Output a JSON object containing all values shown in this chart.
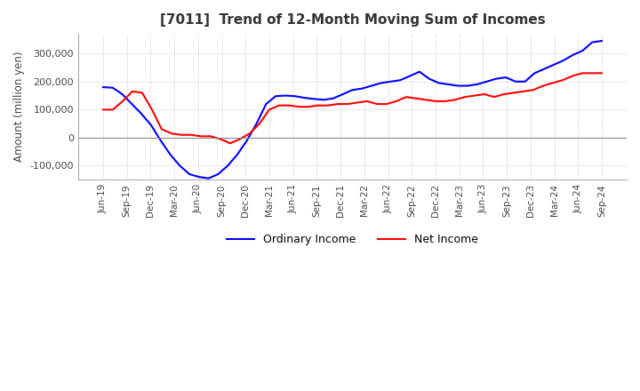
{
  "title": "[7011]  Trend of 12-Month Moving Sum of Incomes",
  "ylabel": "Amount (million yen)",
  "ylim": [
    -150000,
    370000
  ],
  "yticks": [
    -100000,
    0,
    100000,
    200000,
    300000
  ],
  "ordinary_income": {
    "label": "Ordinary Income",
    "color": "#0000FF"
  },
  "net_income": {
    "label": "Net Income",
    "color": "#FF0000"
  },
  "oi_y": [
    180000,
    178000,
    155000,
    120000,
    85000,
    45000,
    -10000,
    -60000,
    -100000,
    -130000,
    -140000,
    -145000,
    -130000,
    -100000,
    -60000,
    -10000,
    50000,
    120000,
    148000,
    150000,
    148000,
    142000,
    138000,
    135000,
    140000,
    155000,
    170000,
    175000,
    185000,
    195000,
    200000,
    205000,
    220000,
    235000,
    210000,
    195000,
    190000,
    185000,
    185000,
    190000,
    200000,
    210000,
    215000,
    200000,
    200000,
    230000,
    245000,
    260000,
    275000,
    295000,
    310000,
    340000,
    345000
  ],
  "ni_y": [
    100000,
    100000,
    130000,
    165000,
    160000,
    100000,
    30000,
    15000,
    10000,
    10000,
    5000,
    5000,
    -5000,
    -20000,
    -5000,
    15000,
    50000,
    100000,
    115000,
    115000,
    110000,
    110000,
    115000,
    115000,
    120000,
    120000,
    125000,
    130000,
    120000,
    120000,
    130000,
    145000,
    140000,
    135000,
    130000,
    130000,
    135000,
    145000,
    150000,
    155000,
    145000,
    155000,
    160000,
    165000,
    170000,
    185000,
    195000,
    205000,
    220000,
    230000,
    230000,
    230000
  ],
  "xtick_labels": [
    "Jun-19",
    "Sep-19",
    "Dec-19",
    "Mar-20",
    "Jun-20",
    "Sep-20",
    "Dec-20",
    "Mar-21",
    "Jun-21",
    "Sep-21",
    "Dec-21",
    "Mar-22",
    "Jun-22",
    "Sep-22",
    "Dec-22",
    "Mar-23",
    "Jun-23",
    "Sep-23",
    "Dec-23",
    "Mar-24",
    "Jun-24",
    "Sep-24"
  ],
  "grid_color": "#BBBBBB",
  "background_color": "#FFFFFF",
  "fig_facecolor": "#FFFFFF"
}
